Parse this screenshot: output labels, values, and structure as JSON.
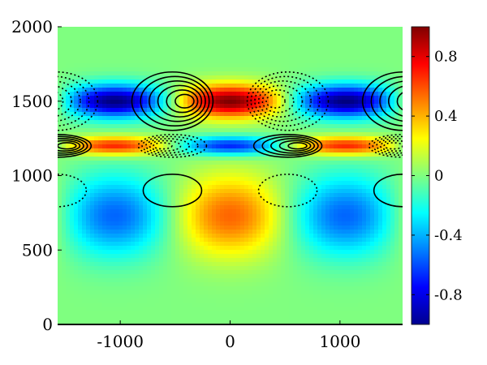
{
  "chart_data": {
    "type": "heatmap",
    "title": "",
    "xlabel": "",
    "ylabel": "",
    "xlim": [
      -1570,
      1570
    ],
    "ylim": [
      0,
      2000
    ],
    "x_ticks": [
      -1000,
      0,
      1000
    ],
    "x_tick_labels": [
      "-1000",
      "0",
      "1000"
    ],
    "y_ticks": [
      0,
      500,
      1000,
      1500,
      2000
    ],
    "y_tick_labels": [
      "0",
      "500",
      "1000",
      "1500",
      "2000"
    ],
    "colormap": "jet",
    "clim": [
      -1,
      1
    ],
    "colorbar": {
      "ticks": [
        0.8,
        0.4,
        0,
        -0.4,
        -0.8
      ],
      "tick_labels": [
        "0.8",
        "0.4",
        "0",
        "-0.4",
        "-0.8"
      ],
      "placement": "right"
    },
    "field_bands": [
      {
        "y_center": 1500,
        "y_halfwidth": 110,
        "amplitude_at_x0": 1.0,
        "x_period": 2100
      },
      {
        "y_center": 1200,
        "y_halfwidth": 60,
        "amplitude_at_x0": -0.7,
        "x_period": 2100
      },
      {
        "y_center": 730,
        "y_halfwidth": 270,
        "amplitude_at_x0": 0.55,
        "x_period": 2100
      }
    ],
    "contour_cells": [
      {
        "x": -525,
        "y": 1500,
        "sign": "positive",
        "style": "solid",
        "levels": 6
      },
      {
        "x": 525,
        "y": 1500,
        "sign": "negative",
        "style": "dotted",
        "levels": 6
      },
      {
        "x": 1575,
        "y": 1500,
        "sign": "positive",
        "style": "solid",
        "levels": 6
      },
      {
        "x": -1575,
        "y": 1500,
        "sign": "negative",
        "style": "dotted",
        "levels": 6
      },
      {
        "x": -1575,
        "y": 1200,
        "sign": "positive",
        "style": "solid",
        "levels": 5
      },
      {
        "x": -525,
        "y": 1200,
        "sign": "negative",
        "style": "dotted",
        "levels": 5
      },
      {
        "x": 525,
        "y": 1200,
        "sign": "positive",
        "style": "solid",
        "levels": 5
      },
      {
        "x": 1575,
        "y": 1200,
        "sign": "negative",
        "style": "dotted",
        "levels": 5
      },
      {
        "x": -525,
        "y": 900,
        "sign": "positive",
        "style": "solid",
        "levels": 1
      },
      {
        "x": 525,
        "y": 900,
        "sign": "negative",
        "style": "dotted",
        "levels": 1
      },
      {
        "x": -1575,
        "y": 900,
        "sign": "negative",
        "style": "dotted",
        "levels": 1
      },
      {
        "x": 1575,
        "y": 900,
        "sign": "positive",
        "style": "solid",
        "levels": 1
      }
    ],
    "grid": false
  }
}
